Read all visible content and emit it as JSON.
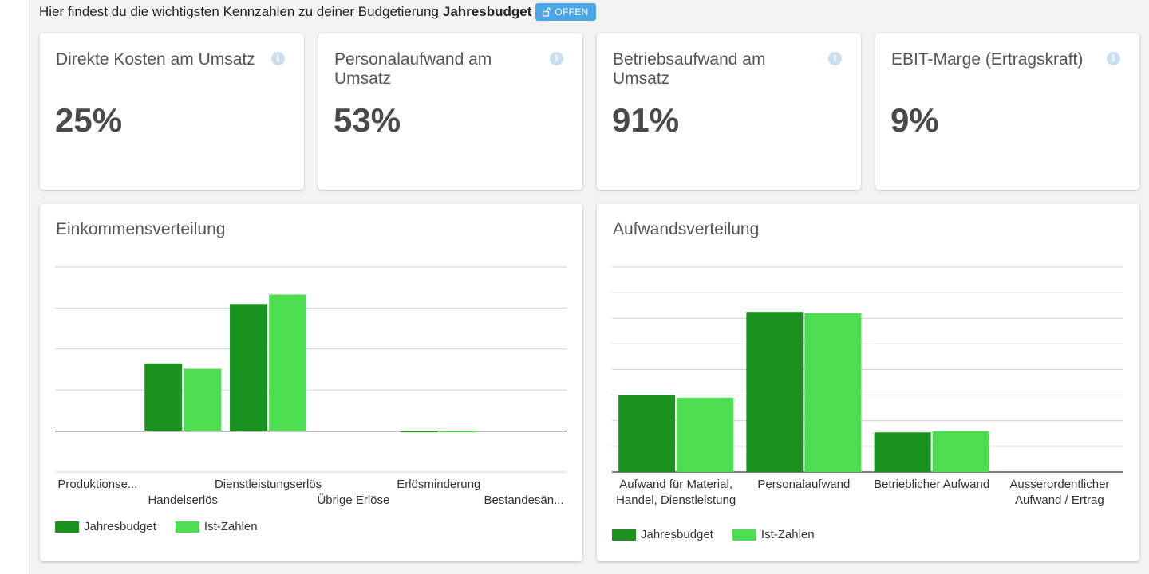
{
  "intro": {
    "text": "Hier findest du die wichtigsten Kennzahlen zu deiner Budgetierung",
    "budget_name": "Jahresbudget",
    "status_badge": "OFFEN"
  },
  "kpis": [
    {
      "title": "Direkte Kosten am Umsatz",
      "value": "25%"
    },
    {
      "title": "Personalaufwand am Umsatz",
      "value": "53%"
    },
    {
      "title": "Betriebsaufwand am Umsatz",
      "value": "91%"
    },
    {
      "title": "EBIT-Marge (Ertragskraft)",
      "value": "9%"
    }
  ],
  "colors": {
    "budget": "#1a931e",
    "actual": "#4cdd50",
    "grid": "#cfcfcf",
    "axis": "#333333"
  },
  "chart_data": [
    {
      "type": "bar",
      "title": "Einkommensverteilung",
      "categories": [
        "Produktionse...",
        "Handelserlös",
        "Dienstleistungserlös",
        "Übrige Erlöse",
        "Erlösminderung",
        "Bestandesän..."
      ],
      "series": [
        {
          "name": "Jahresbudget",
          "values": [
            0,
            1.65,
            3.1,
            0,
            -0.02,
            0
          ]
        },
        {
          "name": "Ist-Zahlen",
          "values": [
            0,
            1.52,
            3.33,
            0,
            -0.02,
            0
          ]
        }
      ],
      "ylim": [
        -1,
        4
      ],
      "grid": true,
      "legend_position": "bottom-left"
    },
    {
      "type": "bar",
      "title": "Aufwandsverteilung",
      "categories": [
        "Aufwand für Material, Handel, Dienstleistung",
        "Personalaufwand",
        "Betrieblicher Aufwand",
        "Ausserordentlicher Aufwand / Ertrag"
      ],
      "series": [
        {
          "name": "Jahresbudget",
          "values": [
            3.0,
            6.25,
            1.55,
            0
          ]
        },
        {
          "name": "Ist-Zahlen",
          "values": [
            2.9,
            6.2,
            1.6,
            0
          ]
        }
      ],
      "ylim": [
        0,
        8
      ],
      "grid": true,
      "legend_position": "bottom-left"
    }
  ]
}
